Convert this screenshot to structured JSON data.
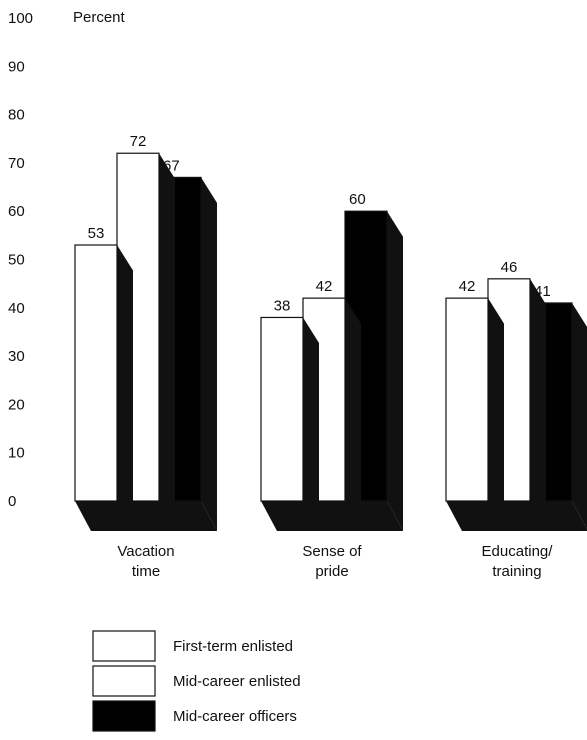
{
  "chart_data": {
    "type": "bar",
    "ylabel": "Percent",
    "ylim": [
      0,
      100
    ],
    "yticks": [
      0,
      10,
      20,
      30,
      40,
      50,
      60,
      70,
      80,
      90,
      100
    ],
    "grid": false,
    "legend_position": "bottom-left",
    "style": "3d",
    "categories": [
      [
        "Vacation",
        "time"
      ],
      [
        "Sense of",
        "pride"
      ],
      [
        "Educating/",
        "training"
      ]
    ],
    "series": [
      {
        "name": "First-term enlisted",
        "values": [
          53,
          38,
          42
        ],
        "color": "#ffffff"
      },
      {
        "name": "Mid-career enlisted",
        "values": [
          72,
          42,
          46
        ],
        "color": "#ffffff"
      },
      {
        "name": "Mid-career officers",
        "values": [
          67,
          60,
          41
        ],
        "color": "#000000"
      }
    ]
  }
}
